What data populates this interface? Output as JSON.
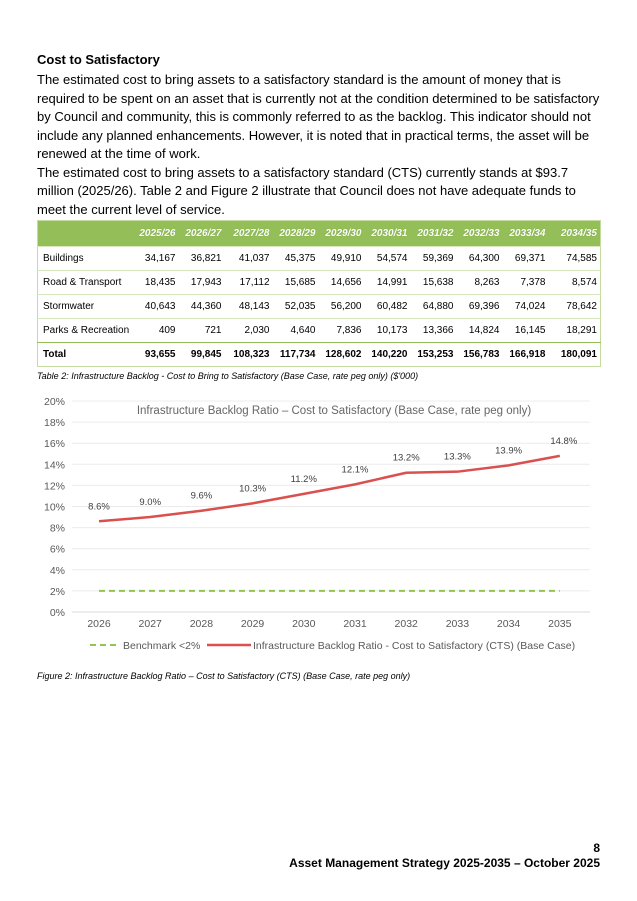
{
  "section_title": "Cost to Satisfactory",
  "paragraphs": [
    "The estimated cost to bring assets to a satisfactory standard is the amount of money that is required to be spent on an asset that is currently not at the condition determined to be satisfactory by Council and community, this is commonly referred to as the backlog. This indicator should not include any planned enhancements. However, it is noted that in practical terms, the asset will be renewed at the time of work.",
    "The estimated cost to bring assets to a satisfactory standard (CTS) currently stands at $93.7 million (2025/26). Table 2 and Figure 2 illustrate that Council does not have adequate funds to meet the current level of service."
  ],
  "table": {
    "headers": [
      "",
      "2025/26",
      "2026/27",
      "2027/28",
      "2028/29",
      "2029/30",
      "2030/31",
      "2031/32",
      "2032/33",
      "2033/34",
      "2034/35"
    ],
    "rows": [
      [
        "Buildings",
        "34,167",
        "36,821",
        "41,037",
        "45,375",
        "49,910",
        "54,574",
        "59,369",
        "64,300",
        "69,371",
        "74,585"
      ],
      [
        "Road & Transport",
        "18,435",
        "17,943",
        "17,112",
        "15,685",
        "14,656",
        "14,991",
        "15,638",
        "8,263",
        "7,378",
        "8,574"
      ],
      [
        "Stormwater",
        "40,643",
        "44,360",
        "48,143",
        "52,035",
        "56,200",
        "60,482",
        "64,880",
        "69,396",
        "74,024",
        "78,642"
      ],
      [
        "Parks & Recreation",
        "409",
        "721",
        "2,030",
        "4,640",
        "7,836",
        "10,173",
        "13,366",
        "14,824",
        "16,145",
        "18,291"
      ],
      [
        "Total",
        "93,655",
        "99,845",
        "108,323",
        "117,734",
        "128,602",
        "140,220",
        "153,253",
        "156,783",
        "166,918",
        "180,091"
      ]
    ],
    "caption": "Table 2: Infrastructure Backlog - Cost to Bring to Satisfactory (Base Case, rate peg only) ($'000)",
    "header_color": "#94bf58"
  },
  "chart_data": {
    "type": "line",
    "title": "Infrastructure Backlog Ratio – Cost to Satisfactory (Base Case, rate peg only)",
    "x": [
      "2026",
      "2027",
      "2028",
      "2029",
      "2030",
      "2031",
      "2032",
      "2033",
      "2034",
      "2035"
    ],
    "yticks": [
      "0%",
      "2%",
      "4%",
      "6%",
      "8%",
      "10%",
      "12%",
      "14%",
      "16%",
      "18%",
      "20%"
    ],
    "ylim": [
      0,
      20
    ],
    "grid": true,
    "legend_position": "bottom",
    "series": [
      {
        "name": "Benchmark <2%",
        "values": [
          2,
          2,
          2,
          2,
          2,
          2,
          2,
          2,
          2,
          2
        ],
        "color": "#92c353",
        "dashed": true
      },
      {
        "name": "Infrastructure Backlog Ratio - Cost to Satisfactory (CTS) (Base Case)",
        "values": [
          8.6,
          9.0,
          9.6,
          10.3,
          11.2,
          12.1,
          13.2,
          13.3,
          13.9,
          14.8
        ],
        "labels": [
          "8.6%",
          "9.0%",
          "9.6%",
          "10.3%",
          "11.2%",
          "12.1%",
          "13.2%",
          "13.3%",
          "13.9%",
          "14.8%"
        ],
        "color": "#d9504f"
      }
    ]
  },
  "figure_caption": "Figure 2: Infrastructure Backlog Ratio – Cost to Satisfactory (CTS) (Base Case, rate peg only)",
  "footer": {
    "page_number": "8",
    "document_title": "Asset Management Strategy 2025-2035 – October 2025"
  }
}
